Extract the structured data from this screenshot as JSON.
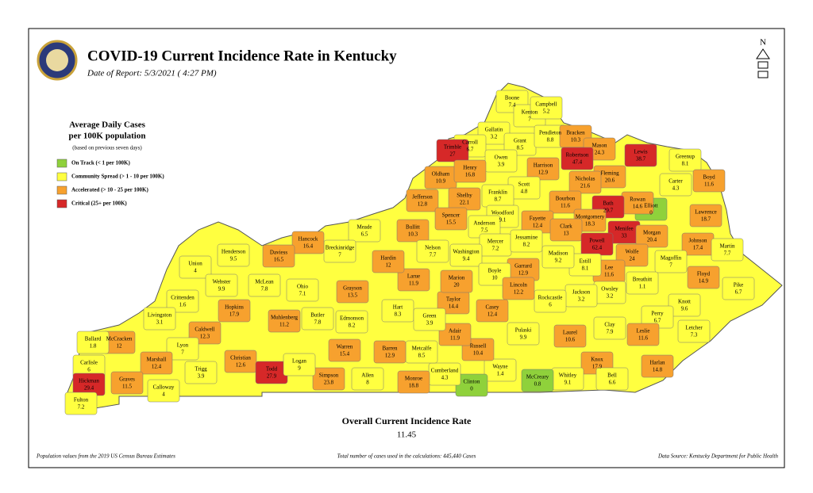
{
  "header": {
    "title": "COVID-19 Current Incidence Rate in Kentucky",
    "date": "Date of Report: 5/3/2021 ( 4:27 PM)"
  },
  "legend": {
    "title": [
      "Average Daily Cases",
      "per 100K population"
    ],
    "note": "(based on previous seven days)",
    "items": [
      {
        "label": "On Track (< 1 per 100K)",
        "color": "#8fd13b"
      },
      {
        "label": "Community Spread (> 1 - 10 per 100K)",
        "color": "#ffff40"
      },
      {
        "label": "Accelerated (> 10 - 25 per 100K)",
        "color": "#f7a12e"
      },
      {
        "label": "Critical (25+ per 100K)",
        "color": "#d62828"
      }
    ]
  },
  "counties": [
    {
      "name": "Boone",
      "value": 7.4,
      "color": "#ffff40"
    },
    {
      "name": "Kenton",
      "value": 7,
      "color": "#ffff40"
    },
    {
      "name": "Campbell",
      "value": 5.2,
      "color": "#ffff40"
    },
    {
      "name": "Gallatin",
      "value": 3.2,
      "color": "#ffff40"
    },
    {
      "name": "Carroll",
      "value": 6.7,
      "color": "#ffff40"
    },
    {
      "name": "Trimble",
      "value": 27,
      "color": "#d62828"
    },
    {
      "name": "Grant",
      "value": 8.5,
      "color": "#ffff40"
    },
    {
      "name": "Pendleton",
      "value": 8.8,
      "color": "#ffff40"
    },
    {
      "name": "Bracken",
      "value": 10.3,
      "color": "#f7a12e"
    },
    {
      "name": "Mason",
      "value": 24.3,
      "color": "#f7a12e"
    },
    {
      "name": "Robertson",
      "value": 47.4,
      "color": "#d62828"
    },
    {
      "name": "Lewis",
      "value": 38.7,
      "color": "#d62828"
    },
    {
      "name": "Greenup",
      "value": 8.1,
      "color": "#ffff40"
    },
    {
      "name": "Boyd",
      "value": 11.6,
      "color": "#f7a12e"
    },
    {
      "name": "Carter",
      "value": 4.3,
      "color": "#ffff40"
    },
    {
      "name": "Elliott",
      "value": 0,
      "color": "#8fd13b"
    },
    {
      "name": "Owen",
      "value": 3.9,
      "color": "#ffff40"
    },
    {
      "name": "Harrison",
      "value": 12.9,
      "color": "#f7a12e"
    },
    {
      "name": "Fleming",
      "value": 20.6,
      "color": "#f7a12e"
    },
    {
      "name": "Nicholas",
      "value": 21.6,
      "color": "#f7a12e"
    },
    {
      "name": "Rowan",
      "value": 14.6,
      "color": "#f7a12e"
    },
    {
      "name": "Oldham",
      "value": 10.9,
      "color": "#f7a12e"
    },
    {
      "name": "Henry",
      "value": 16.8,
      "color": "#f7a12e"
    },
    {
      "name": "Scott",
      "value": 4.8,
      "color": "#ffff40"
    },
    {
      "name": "Franklin",
      "value": 8.7,
      "color": "#ffff40"
    },
    {
      "name": "Shelby",
      "value": 22.1,
      "color": "#f7a12e"
    },
    {
      "name": "Jefferson",
      "value": 12.8,
      "color": "#f7a12e"
    },
    {
      "name": "Bourbon",
      "value": 11.6,
      "color": "#f7a12e"
    },
    {
      "name": "Bath",
      "value": 29.7,
      "color": "#d62828"
    },
    {
      "name": "Lawrence",
      "value": 18.7,
      "color": "#f7a12e"
    },
    {
      "name": "Montgomery",
      "value": 18.3,
      "color": "#f7a12e"
    },
    {
      "name": "Menifee",
      "value": 33,
      "color": "#d62828"
    },
    {
      "name": "Morgan",
      "value": 20.4,
      "color": "#f7a12e"
    },
    {
      "name": "Johnson",
      "value": 17.4,
      "color": "#f7a12e"
    },
    {
      "name": "Martin",
      "value": 7.7,
      "color": "#ffff40"
    },
    {
      "name": "Woodford",
      "value": 9.1,
      "color": "#ffff40"
    },
    {
      "name": "Fayette",
      "value": 12.4,
      "color": "#f7a12e"
    },
    {
      "name": "Clark",
      "value": 13,
      "color": "#f7a12e"
    },
    {
      "name": "Spencer",
      "value": 15.5,
      "color": "#f7a12e"
    },
    {
      "name": "Anderson",
      "value": 7.5,
      "color": "#ffff40"
    },
    {
      "name": "Bullitt",
      "value": 10.3,
      "color": "#f7a12e"
    },
    {
      "name": "Mercer",
      "value": 7.2,
      "color": "#ffff40"
    },
    {
      "name": "Jessamine",
      "value": 8.2,
      "color": "#ffff40"
    },
    {
      "name": "Powell",
      "value": 62.4,
      "color": "#d62828"
    },
    {
      "name": "Wolfe",
      "value": 24,
      "color": "#f7a12e"
    },
    {
      "name": "Lee",
      "value": 11.6,
      "color": "#f7a12e"
    },
    {
      "name": "Estill",
      "value": 8.1,
      "color": "#ffff40"
    },
    {
      "name": "Madison",
      "value": 9.2,
      "color": "#ffff40"
    },
    {
      "name": "Garrard",
      "value": 12.9,
      "color": "#f7a12e"
    },
    {
      "name": "Nelson",
      "value": 7.7,
      "color": "#ffff40"
    },
    {
      "name": "Washington",
      "value": 9.4,
      "color": "#ffff40"
    },
    {
      "name": "Boyle",
      "value": 10,
      "color": "#ffff40"
    },
    {
      "name": "Magoffin",
      "value": 7,
      "color": "#ffff40"
    },
    {
      "name": "Floyd",
      "value": 14.9,
      "color": "#f7a12e"
    },
    {
      "name": "Pike",
      "value": 6.7,
      "color": "#ffff40"
    },
    {
      "name": "Breathitt",
      "value": 1.1,
      "color": "#ffff40"
    },
    {
      "name": "Knott",
      "value": 9.6,
      "color": "#ffff40"
    },
    {
      "name": "Perry",
      "value": 6.7,
      "color": "#ffff40"
    },
    {
      "name": "Letcher",
      "value": 7.3,
      "color": "#ffff40"
    },
    {
      "name": "Harlan",
      "value": 14.8,
      "color": "#f7a12e"
    },
    {
      "name": "Leslie",
      "value": 11.6,
      "color": "#f7a12e"
    },
    {
      "name": "Owsley",
      "value": 3.2,
      "color": "#ffff40"
    },
    {
      "name": "Jackson",
      "value": 3.2,
      "color": "#ffff40"
    },
    {
      "name": "Clay",
      "value": 7.9,
      "color": "#ffff40"
    },
    {
      "name": "Knox",
      "value": 17.9,
      "color": "#f7a12e"
    },
    {
      "name": "Bell",
      "value": 6.6,
      "color": "#ffff40"
    },
    {
      "name": "Whitley",
      "value": 9.1,
      "color": "#ffff40"
    },
    {
      "name": "Laurel",
      "value": 10.6,
      "color": "#f7a12e"
    },
    {
      "name": "Rockcastle",
      "value": 6,
      "color": "#ffff40"
    },
    {
      "name": "McCreary",
      "value": 0.8,
      "color": "#8fd13b"
    },
    {
      "name": "Pulaski",
      "value": 9.9,
      "color": "#ffff40"
    },
    {
      "name": "Wayne",
      "value": 1.4,
      "color": "#ffff40"
    },
    {
      "name": "Clinton",
      "value": 0,
      "color": "#8fd13b"
    },
    {
      "name": "Lincoln",
      "value": 12.2,
      "color": "#f7a12e"
    },
    {
      "name": "Casey",
      "value": 12.4,
      "color": "#f7a12e"
    },
    {
      "name": "Russell",
      "value": 10.4,
      "color": "#f7a12e"
    },
    {
      "name": "Cumberland",
      "value": 4.3,
      "color": "#ffff40"
    },
    {
      "name": "Adair",
      "value": 11.9,
      "color": "#f7a12e"
    },
    {
      "name": "Taylor",
      "value": 14.4,
      "color": "#f7a12e"
    },
    {
      "name": "Marion",
      "value": 20,
      "color": "#f7a12e"
    },
    {
      "name": "Larue",
      "value": 11.9,
      "color": "#f7a12e"
    },
    {
      "name": "Hardin",
      "value": 12,
      "color": "#f7a12e"
    },
    {
      "name": "Meade",
      "value": 6.5,
      "color": "#ffff40"
    },
    {
      "name": "Breckinridge",
      "value": 7,
      "color": "#ffff40"
    },
    {
      "name": "Hancock",
      "value": 16.4,
      "color": "#f7a12e"
    },
    {
      "name": "Daviess",
      "value": 16.5,
      "color": "#f7a12e"
    },
    {
      "name": "Henderson",
      "value": 9.5,
      "color": "#ffff40"
    },
    {
      "name": "Union",
      "value": 4,
      "color": "#ffff40"
    },
    {
      "name": "Webster",
      "value": 9.9,
      "color": "#ffff40"
    },
    {
      "name": "McLean",
      "value": 7.8,
      "color": "#ffff40"
    },
    {
      "name": "Ohio",
      "value": 7.1,
      "color": "#ffff40"
    },
    {
      "name": "Grayson",
      "value": 13.5,
      "color": "#f7a12e"
    },
    {
      "name": "Hart",
      "value": 8.3,
      "color": "#ffff40"
    },
    {
      "name": "Green",
      "value": 3.9,
      "color": "#ffff40"
    },
    {
      "name": "Metcalfe",
      "value": 8.5,
      "color": "#ffff40"
    },
    {
      "name": "Monroe",
      "value": 18.8,
      "color": "#f7a12e"
    },
    {
      "name": "Barren",
      "value": 12.9,
      "color": "#f7a12e"
    },
    {
      "name": "Edmonson",
      "value": 8.2,
      "color": "#ffff40"
    },
    {
      "name": "Warren",
      "value": 15.4,
      "color": "#f7a12e"
    },
    {
      "name": "Allen",
      "value": 8,
      "color": "#ffff40"
    },
    {
      "name": "Simpson",
      "value": 23.8,
      "color": "#f7a12e"
    },
    {
      "name": "Butler",
      "value": 7.8,
      "color": "#ffff40"
    },
    {
      "name": "Muhlenberg",
      "value": 11.2,
      "color": "#f7a12e"
    },
    {
      "name": "Hopkins",
      "value": 17.9,
      "color": "#f7a12e"
    },
    {
      "name": "Crittenden",
      "value": 1.6,
      "color": "#ffff40"
    },
    {
      "name": "Livingston",
      "value": 3.1,
      "color": "#ffff40"
    },
    {
      "name": "Caldwell",
      "value": 12.3,
      "color": "#f7a12e"
    },
    {
      "name": "Christian",
      "value": 12.6,
      "color": "#f7a12e"
    },
    {
      "name": "Todd",
      "value": 27.9,
      "color": "#d62828"
    },
    {
      "name": "Logan",
      "value": 9,
      "color": "#ffff40"
    },
    {
      "name": "Trigg",
      "value": 3.9,
      "color": "#ffff40"
    },
    {
      "name": "Lyon",
      "value": 7,
      "color": "#ffff40"
    },
    {
      "name": "Marshall",
      "value": 12.4,
      "color": "#f7a12e"
    },
    {
      "name": "Calloway",
      "value": 4,
      "color": "#ffff40"
    },
    {
      "name": "Graves",
      "value": 11.5,
      "color": "#f7a12e"
    },
    {
      "name": "McCracken",
      "value": 12,
      "color": "#f7a12e"
    },
    {
      "name": "Ballard",
      "value": 1.8,
      "color": "#ffff40"
    },
    {
      "name": "Carlisle",
      "value": 6,
      "color": "#ffff40"
    },
    {
      "name": "Hickman",
      "value": 29.4,
      "color": "#d62828"
    },
    {
      "name": "Fulton",
      "value": 7.2,
      "color": "#ffff40"
    }
  ],
  "overall": {
    "label": "Overall Current Incidence Rate",
    "value": 11.45
  },
  "footer": {
    "left": "Population values from the 2019 US Census Bureau Estimates",
    "center": "Total number of cases used in the calculations: 445,440 Cases",
    "right": "Data Source: Kentucky Department for Public Health"
  },
  "north": "N"
}
